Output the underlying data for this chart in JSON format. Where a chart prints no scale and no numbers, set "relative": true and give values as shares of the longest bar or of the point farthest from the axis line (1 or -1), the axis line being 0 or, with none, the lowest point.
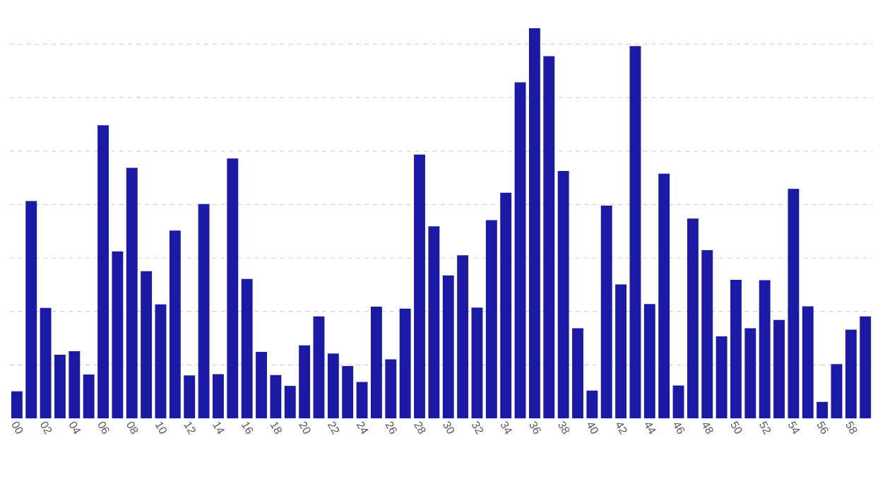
{
  "chart_data": {
    "type": "bar",
    "relative": true,
    "color": "#1a1aa6",
    "grid": "y",
    "categories": [
      "00",
      null,
      "02",
      null,
      "04",
      null,
      "06",
      null,
      "08",
      null,
      "10",
      null,
      "12",
      null,
      "14",
      null,
      "16",
      null,
      "18",
      null,
      "20",
      null,
      "22",
      null,
      "24",
      null,
      "26",
      null,
      "28",
      null,
      "30",
      null,
      "32",
      null,
      "34",
      null,
      "36",
      null,
      "38",
      null,
      "40",
      null,
      "42",
      null,
      "44",
      null,
      "46",
      null,
      "48",
      null,
      "50",
      null,
      "52",
      null,
      "54",
      null,
      "56",
      null,
      "58",
      null
    ],
    "values": [
      0.069,
      0.557,
      0.283,
      0.163,
      0.172,
      0.112,
      0.751,
      0.428,
      0.642,
      0.377,
      0.292,
      0.481,
      0.11,
      0.549,
      0.113,
      0.666,
      0.357,
      0.17,
      0.111,
      0.083,
      0.187,
      0.261,
      0.166,
      0.134,
      0.093,
      0.286,
      0.151,
      0.281,
      0.676,
      0.492,
      0.366,
      0.418,
      0.284,
      0.508,
      0.578,
      0.861,
      1,
      0.928,
      0.634,
      0.231,
      0.071,
      0.545,
      0.343,
      0.954,
      0.293,
      0.627,
      0.084,
      0.512,
      0.431,
      0.21,
      0.355,
      0.231,
      0.354,
      0.252,
      0.588,
      0.287,
      0.042,
      0.139,
      0.227,
      0.261
    ]
  }
}
